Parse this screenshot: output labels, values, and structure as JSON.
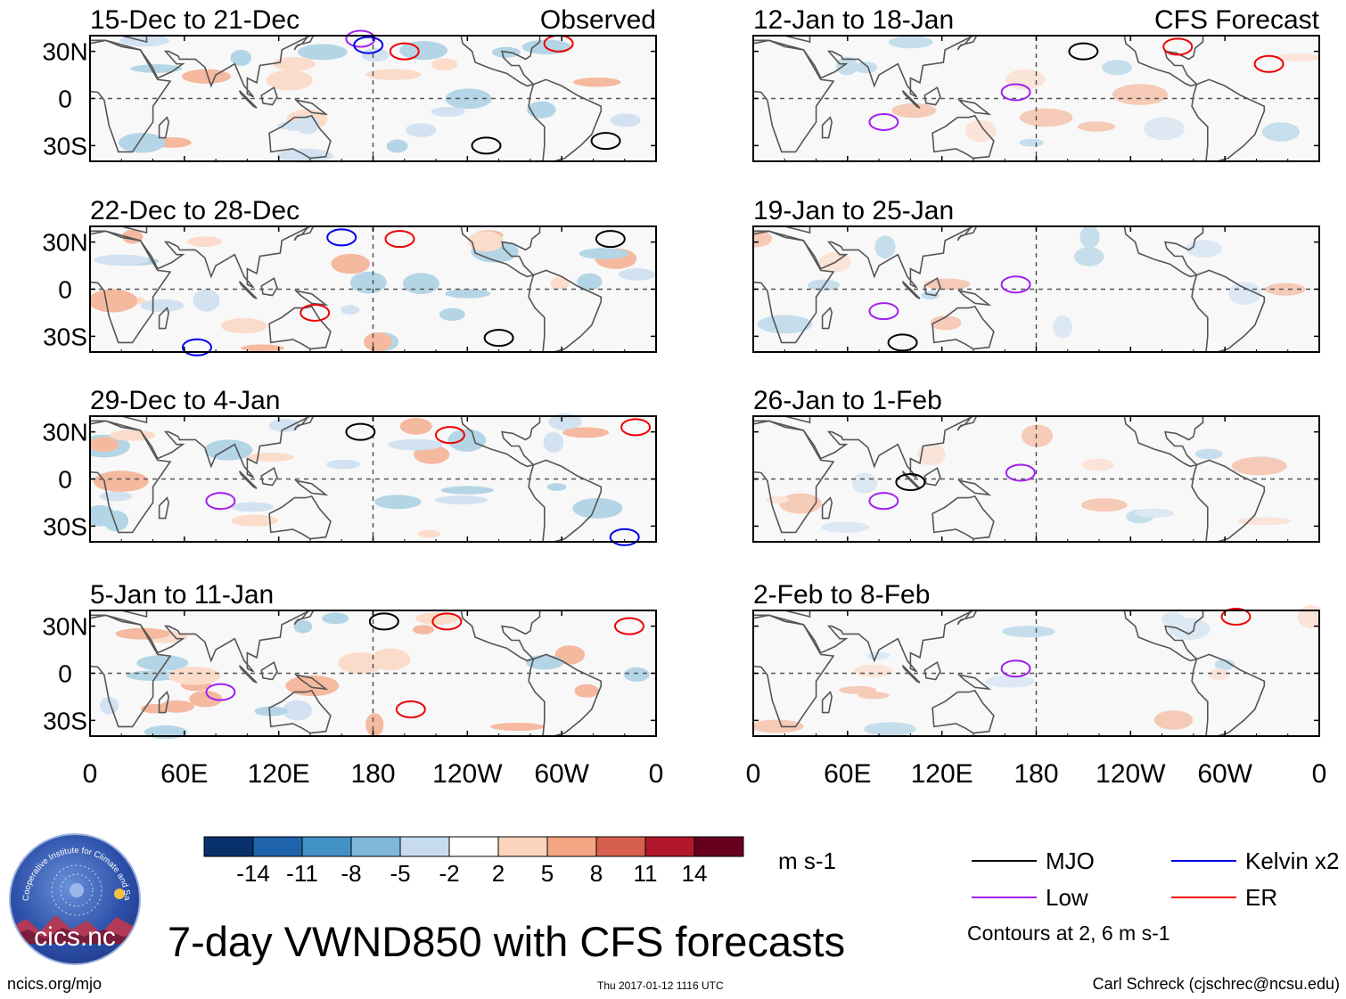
{
  "title": "7-day VWND850 with CFS forecasts",
  "footer": {
    "left": "ncics.org/mjo",
    "center": "Thu 2017-01-12 1116 UTC",
    "right": "Carl Schreck (cjschrec@ncsu.edu)"
  },
  "logo": {
    "text": "cics.nc",
    "ring": "Cooperative Institute for Climate and Satellites"
  },
  "colorbar": {
    "units": "m s-1",
    "ticks": [
      "-14",
      "-11",
      "-8",
      "-5",
      "-2",
      "2",
      "5",
      "8",
      "11",
      "14"
    ],
    "colors": [
      "#08306b",
      "#1f63aa",
      "#4292c6",
      "#7fb8da",
      "#c6dbef",
      "#ffffff",
      "#fcd3bd",
      "#f4a582",
      "#d6604d",
      "#b2182b",
      "#67001f"
    ]
  },
  "legend": {
    "items": [
      {
        "label": "MJO",
        "color": "#000000"
      },
      {
        "label": "Kelvin x2",
        "color": "#0000ee"
      },
      {
        "label": "Low",
        "color": "#a020f0"
      },
      {
        "label": "ER",
        "color": "#ee0000"
      }
    ],
    "note": "Contours at 2, 6 m s-1"
  },
  "chart_data": {
    "type": "heatmap",
    "variable": "VWND850",
    "x_ticks": [
      "0",
      "60E",
      "120E",
      "180",
      "120W",
      "60W",
      "0"
    ],
    "x_tick_values": [
      0,
      60,
      120,
      180,
      240,
      300,
      360
    ],
    "y_ticks": [
      "30N",
      "0",
      "30S"
    ],
    "y_tick_values": [
      30,
      0,
      -30
    ],
    "xlim": [
      0,
      360
    ],
    "ylim": [
      -40,
      40
    ],
    "columns": [
      {
        "label": "Observed",
        "panels": [
          {
            "dates": "15-Dec to 21-Dec",
            "marks": [
              {
                "kind": "ER",
                "lon": 200,
                "lat": 30
              },
              {
                "kind": "ER",
                "lon": 298,
                "lat": 35
              },
              {
                "kind": "MJO",
                "lon": 252,
                "lat": -30
              },
              {
                "kind": "MJO",
                "lon": 328,
                "lat": -27
              },
              {
                "kind": "Low",
                "lon": 172,
                "lat": 38
              },
              {
                "kind": "Kelvin",
                "lon": 177,
                "lat": 34
              }
            ]
          },
          {
            "dates": "22-Dec to 28-Dec",
            "marks": [
              {
                "kind": "Kelvin",
                "lon": 160,
                "lat": 33
              },
              {
                "kind": "ER",
                "lon": 197,
                "lat": 32
              },
              {
                "kind": "ER",
                "lon": 143,
                "lat": -15
              },
              {
                "kind": "MJO",
                "lon": 260,
                "lat": -31
              },
              {
                "kind": "MJO",
                "lon": 331,
                "lat": 32
              },
              {
                "kind": "Kelvin",
                "lon": 68,
                "lat": -37
              }
            ]
          },
          {
            "dates": "29-Dec to 4-Jan",
            "marks": [
              {
                "kind": "MJO",
                "lon": 172,
                "lat": 30
              },
              {
                "kind": "ER",
                "lon": 229,
                "lat": 28
              },
              {
                "kind": "Low",
                "lon": 83,
                "lat": -14
              },
              {
                "kind": "Kelvin",
                "lon": 340,
                "lat": -37
              },
              {
                "kind": "ER",
                "lon": 347,
                "lat": 33
              }
            ]
          },
          {
            "dates": "5-Jan to 11-Jan",
            "marks": [
              {
                "kind": "MJO",
                "lon": 187,
                "lat": 33
              },
              {
                "kind": "ER",
                "lon": 227,
                "lat": 33
              },
              {
                "kind": "ER",
                "lon": 343,
                "lat": 30
              },
              {
                "kind": "ER",
                "lon": 204,
                "lat": -23
              },
              {
                "kind": "Low",
                "lon": 83,
                "lat": -12
              }
            ]
          }
        ]
      },
      {
        "label": "CFS Forecast",
        "panels": [
          {
            "dates": "12-Jan to 18-Jan",
            "marks": [
              {
                "kind": "MJO",
                "lon": 210,
                "lat": 30
              },
              {
                "kind": "ER",
                "lon": 270,
                "lat": 33
              },
              {
                "kind": "ER",
                "lon": 328,
                "lat": 22
              },
              {
                "kind": "Low",
                "lon": 167,
                "lat": 4
              },
              {
                "kind": "Low",
                "lon": 83,
                "lat": -15
              }
            ]
          },
          {
            "dates": "19-Jan to 25-Jan",
            "marks": [
              {
                "kind": "Low",
                "lon": 167,
                "lat": 3
              },
              {
                "kind": "Low",
                "lon": 83,
                "lat": -14
              },
              {
                "kind": "MJO",
                "lon": 95,
                "lat": -34
              }
            ]
          },
          {
            "dates": "26-Jan to 1-Feb",
            "marks": [
              {
                "kind": "Low",
                "lon": 170,
                "lat": 4
              },
              {
                "kind": "MJO",
                "lon": 100,
                "lat": -2
              },
              {
                "kind": "Low",
                "lon": 83,
                "lat": -14
              }
            ]
          },
          {
            "dates": "2-Feb to 8-Feb",
            "marks": [
              {
                "kind": "Low",
                "lon": 167,
                "lat": 3
              },
              {
                "kind": "ER",
                "lon": 307,
                "lat": 36
              }
            ]
          }
        ]
      }
    ]
  }
}
